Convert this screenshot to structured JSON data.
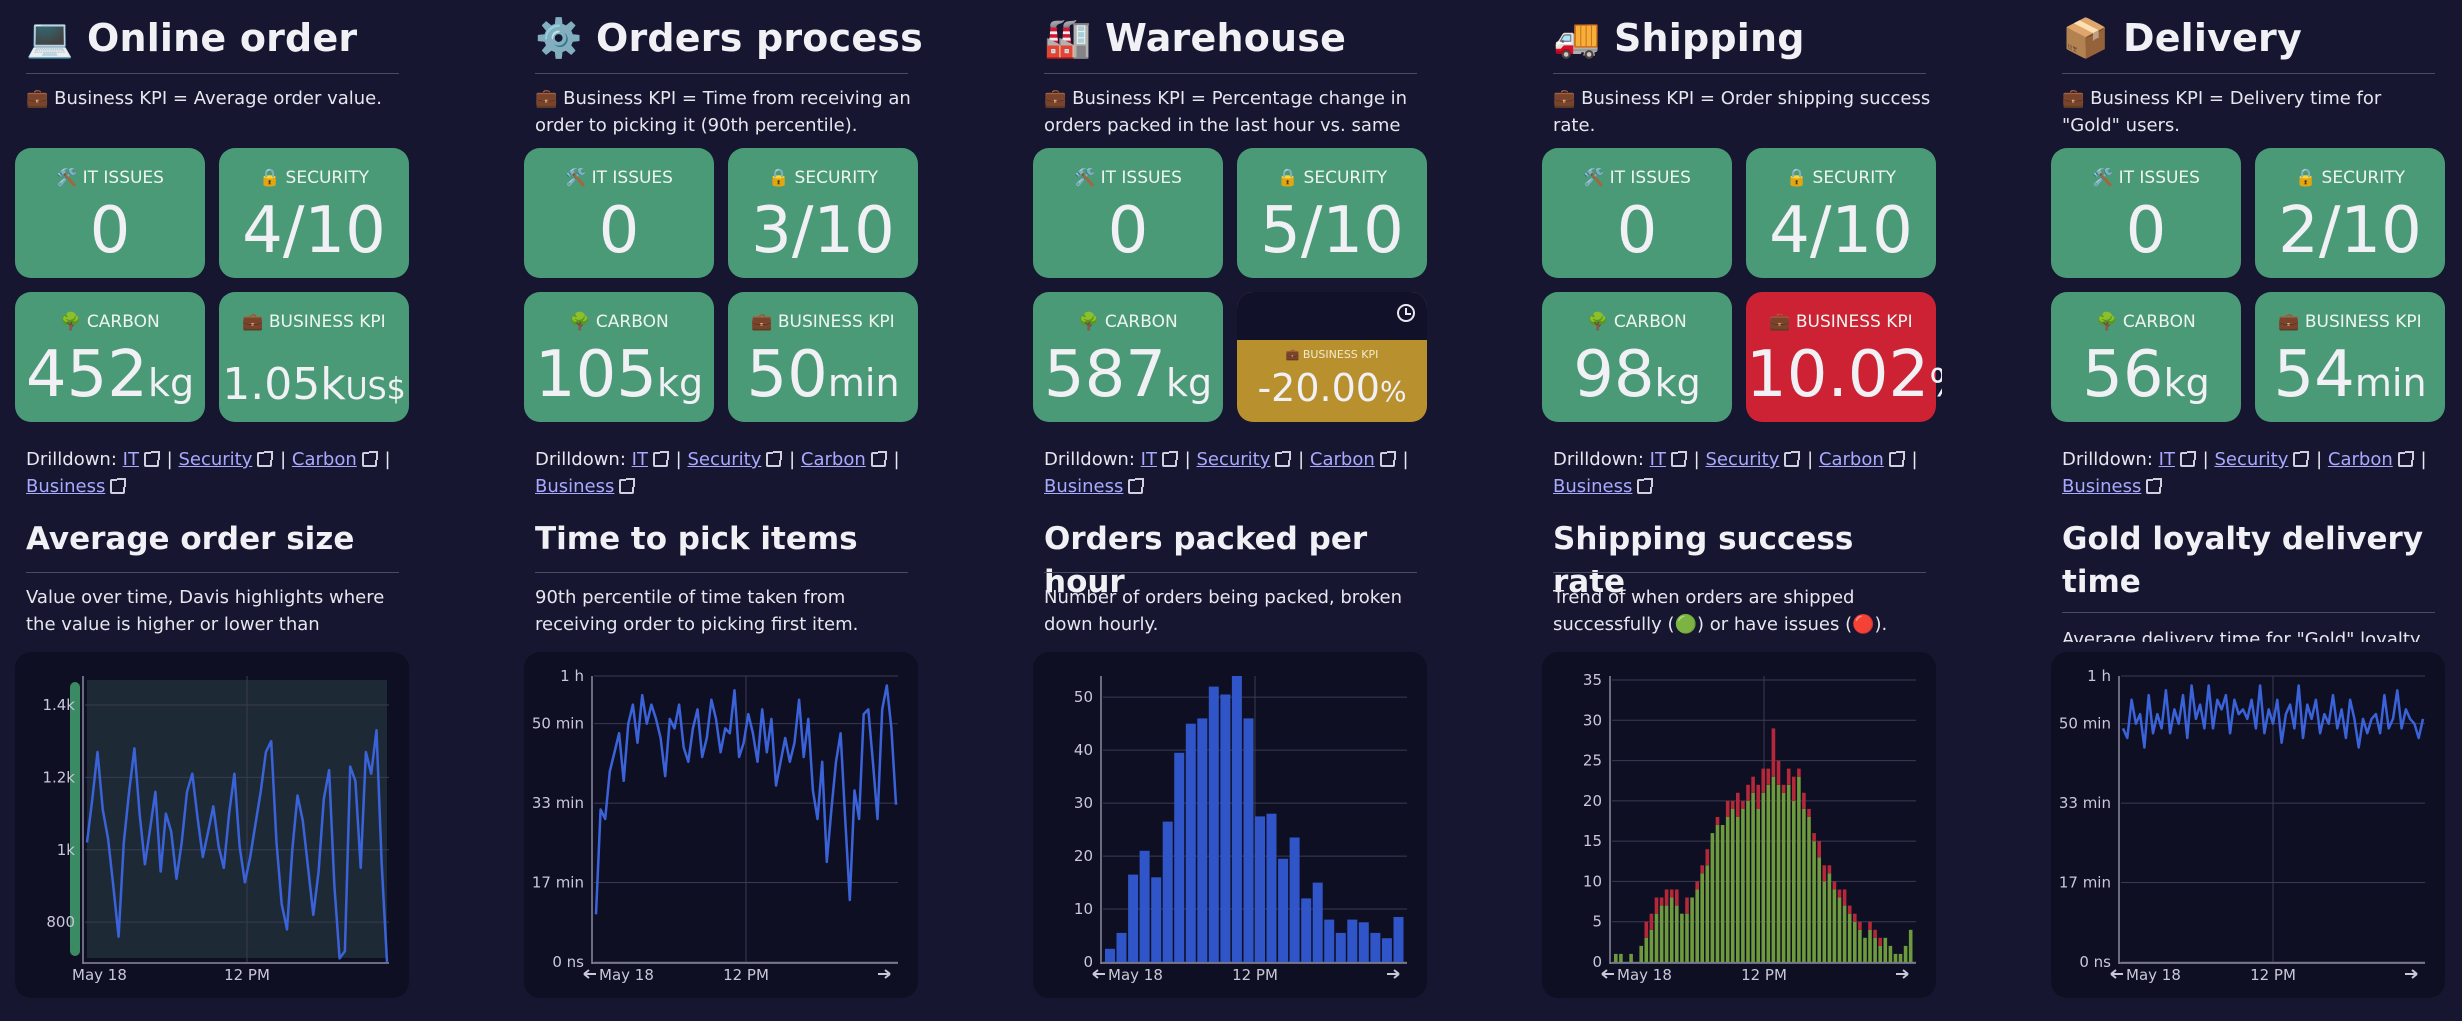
{
  "columns": [
    {
      "title": "Online order",
      "emoji": "💻",
      "kpi_desc": "💼 Business KPI = Average order value.",
      "tiles": {
        "it": {
          "label": "🛠️ IT ISSUES",
          "value": "0"
        },
        "security": {
          "label": "🔒 SECURITY",
          "value": "4/10"
        },
        "carbon": {
          "label": "🌳 CARBON",
          "value": "452",
          "unit": "kg"
        },
        "business": {
          "label": "💼 BUSINESS KPI",
          "value": "1.05k",
          "unit": "US$",
          "status": "ok"
        }
      },
      "drilldown": {
        "prefix": "Drilldown:",
        "links": [
          "IT",
          "Security",
          "Carbon",
          "Business"
        ]
      },
      "section_title": "Average order size",
      "section_desc": "Value over time, Davis highlights where the value is higher or lower than expected."
    },
    {
      "title": "Orders processed",
      "emoji": "⚙️",
      "kpi_desc": "💼 Business KPI = Time from receiving an order to picking it (90th percentile).",
      "tiles": {
        "it": {
          "label": "🛠️ IT ISSUES",
          "value": "0"
        },
        "security": {
          "label": "🔒 SECURITY",
          "value": "3/10"
        },
        "carbon": {
          "label": "🌳 CARBON",
          "value": "105",
          "unit": "kg"
        },
        "business": {
          "label": "💼 BUSINESS KPI",
          "value": "50",
          "unit": "min",
          "status": "ok"
        }
      },
      "drilldown": {
        "prefix": "Drilldown:",
        "links": [
          "IT",
          "Security",
          "Carbon",
          "Business"
        ]
      },
      "section_title": "Time to pick items",
      "section_desc": "90th percentile of time taken from receiving order to picking first item."
    },
    {
      "title": "Warehouse",
      "emoji": "🏭",
      "kpi_desc": "💼 Business KPI = Percentage change in orders packed in the last hour vs. same time",
      "tiles": {
        "it": {
          "label": "🛠️ IT ISSUES",
          "value": "0"
        },
        "security": {
          "label": "🔒 SECURITY",
          "value": "5/10"
        },
        "carbon": {
          "label": "🌳 CARBON",
          "value": "587",
          "unit": "kg"
        },
        "business": {
          "label": "💼 BUSINESS KPI",
          "value": "-20.00",
          "unit": "%",
          "status": "warning"
        }
      },
      "drilldown": {
        "prefix": "Drilldown:",
        "links": [
          "IT",
          "Security",
          "Carbon",
          "Business"
        ]
      },
      "section_title": "Orders packed per hour",
      "section_desc": "Number of orders being packed, broken down hourly."
    },
    {
      "title": "Shipping",
      "emoji": "🚚",
      "kpi_desc": "💼 Business KPI = Order shipping success rate.",
      "tiles": {
        "it": {
          "label": "🛠️ IT ISSUES",
          "value": "0"
        },
        "security": {
          "label": "🔒 SECURITY",
          "value": "4/10"
        },
        "carbon": {
          "label": "🌳 CARBON",
          "value": "98",
          "unit": "kg"
        },
        "business": {
          "label": "💼 BUSINESS KPI",
          "value": "10.02",
          "unit": "%",
          "status": "critical"
        }
      },
      "drilldown": {
        "prefix": "Drilldown:",
        "links": [
          "IT",
          "Security",
          "Carbon",
          "Business"
        ]
      },
      "section_title": "Shipping success rate",
      "section_desc": "Trend of when orders are shipped successfully (🟢) or have issues (🔴)."
    },
    {
      "title": "Delivery",
      "emoji": "📦",
      "kpi_desc": "💼 Business KPI = Delivery time for \"Gold\" users.",
      "tiles": {
        "it": {
          "label": "🛠️ IT ISSUES",
          "value": "0"
        },
        "security": {
          "label": "🔒 SECURITY",
          "value": "2/10"
        },
        "carbon": {
          "label": "🌳 CARBON",
          "value": "56",
          "unit": "kg"
        },
        "business": {
          "label": "💼 BUSINESS KPI",
          "value": "54",
          "unit": "min",
          "status": "ok"
        }
      },
      "drilldown": {
        "prefix": "Drilldown:",
        "links": [
          "IT",
          "Security",
          "Carbon",
          "Business"
        ]
      },
      "section_title": "Gold loyalty delivery time",
      "section_desc": "Average delivery time for \"Gold\" loyalty"
    }
  ],
  "colors": {
    "background": "#161630",
    "tile_ok": "#4a9a78",
    "tile_critical": "#cc2233",
    "tile_warning": "#b8902e",
    "line": "#3b63d9",
    "bar": "#2f55c8",
    "bar_success": "#6d9a3c",
    "bar_issue": "#b5283a",
    "link": "#a9a9ff"
  },
  "chart_data": [
    {
      "type": "line",
      "x_ticks": [
        "May 18",
        "12 PM"
      ],
      "y_ticks": [
        "800",
        "1k",
        "1.2k",
        "1.4k"
      ],
      "ylim": [
        690,
        1480
      ],
      "series": [
        {
          "values": [
            1020,
            1140,
            1270,
            1110,
            1030,
            900,
            760,
            1020,
            1160,
            1280,
            1100,
            960,
            1060,
            1160,
            940,
            1100,
            1050,
            920,
            1020,
            1160,
            1210,
            1090,
            980,
            1050,
            1120,
            1010,
            950,
            1100,
            1210,
            1010,
            910,
            980,
            1070,
            1160,
            1270,
            1300,
            1020,
            850,
            780,
            1000,
            1150,
            1080,
            950,
            820,
            940,
            1140,
            1220,
            900,
            700,
            720,
            1230,
            1190,
            950,
            1270,
            1210,
            1330,
            960,
            690
          ]
        }
      ],
      "anomaly_band": true
    },
    {
      "type": "line",
      "x_ticks": [
        "May 18",
        "12 PM"
      ],
      "y_ticks": [
        "0 ns",
        "17 min",
        "33 min",
        "50 min",
        "1 h"
      ],
      "ylim": [
        0,
        60
      ],
      "series": [
        {
          "values": [
            10,
            32,
            30,
            40,
            44,
            48,
            38,
            50,
            54,
            46,
            56,
            50,
            54,
            51,
            47,
            39,
            51,
            49,
            54,
            45,
            42,
            49,
            53,
            43,
            47,
            55,
            51,
            44,
            49,
            48,
            57,
            43,
            46,
            52,
            48,
            42,
            53,
            44,
            51,
            37,
            42,
            47,
            42,
            46,
            55,
            43,
            51,
            36,
            30,
            42,
            21,
            32,
            42,
            48,
            30,
            13,
            36,
            30,
            52,
            53,
            42,
            30,
            53,
            58,
            49,
            33
          ]
        }
      ]
    },
    {
      "type": "bar",
      "x_ticks": [
        "May 18",
        "12 PM"
      ],
      "y_ticks": [
        "0",
        "10",
        "20",
        "30",
        "40",
        "50"
      ],
      "ylim": [
        0,
        54
      ],
      "values": [
        2.5,
        5.5,
        16.5,
        21,
        16,
        26.5,
        39.5,
        45,
        46,
        52,
        50.5,
        54,
        46,
        27.5,
        28,
        19.5,
        23.5,
        12,
        15,
        8,
        5.5,
        8,
        7.5,
        5.5,
        4.5,
        8.5
      ]
    },
    {
      "type": "bar",
      "stacked": true,
      "x_ticks": [
        "May 18",
        "12 PM"
      ],
      "y_ticks": [
        "0",
        "5",
        "10",
        "15",
        "20",
        "25",
        "30",
        "35"
      ],
      "ylim": [
        0,
        35.5
      ],
      "series": [
        {
          "values": [
            1,
            1,
            0,
            1,
            0,
            2,
            3,
            4,
            6,
            7,
            7,
            8,
            7,
            6,
            6,
            8,
            9,
            11,
            12,
            16,
            17,
            17,
            18,
            19,
            18,
            19,
            20,
            21,
            19,
            21,
            22,
            23,
            22,
            21,
            22,
            20,
            23,
            19,
            18,
            15,
            13,
            10,
            11,
            9,
            8,
            7,
            6,
            5,
            4,
            3,
            4,
            3,
            2,
            3,
            2,
            1,
            1,
            2,
            4
          ]
        },
        {
          "values": [
            0,
            0,
            0,
            0,
            0,
            0,
            2,
            2,
            2,
            1,
            2,
            1,
            2,
            0,
            2,
            0,
            1,
            1,
            2,
            0,
            1,
            0,
            2,
            1,
            3,
            1,
            2,
            2,
            3,
            3,
            2,
            6,
            3,
            1,
            2,
            3,
            1,
            2,
            1,
            1,
            2,
            2,
            1,
            1,
            1,
            2,
            1,
            1,
            1,
            0,
            1,
            1,
            1,
            0,
            0,
            0,
            0,
            0,
            0
          ]
        }
      ]
    },
    {
      "type": "line",
      "x_ticks": [
        "May 18",
        "12 PM"
      ],
      "y_ticks": [
        "0 ns",
        "17 min",
        "33 min",
        "50 min",
        "1 h"
      ],
      "ylim": [
        0,
        60
      ],
      "series": [
        {
          "values": [
            49,
            47,
            55,
            50,
            52,
            45,
            56,
            48,
            52,
            49,
            57,
            48,
            53,
            50,
            56,
            47,
            58,
            51,
            54,
            49,
            58,
            49,
            55,
            53,
            56,
            48,
            55,
            52,
            53,
            51,
            55,
            49,
            58,
            48,
            53,
            50,
            55,
            46,
            52,
            54,
            49,
            58,
            47,
            54,
            51,
            55,
            48,
            52,
            50,
            56,
            49,
            53,
            47,
            55,
            51,
            45,
            51,
            48,
            51,
            52,
            48,
            56,
            49,
            51,
            57,
            49,
            53,
            51,
            50,
            47,
            51
          ]
        }
      ]
    }
  ]
}
